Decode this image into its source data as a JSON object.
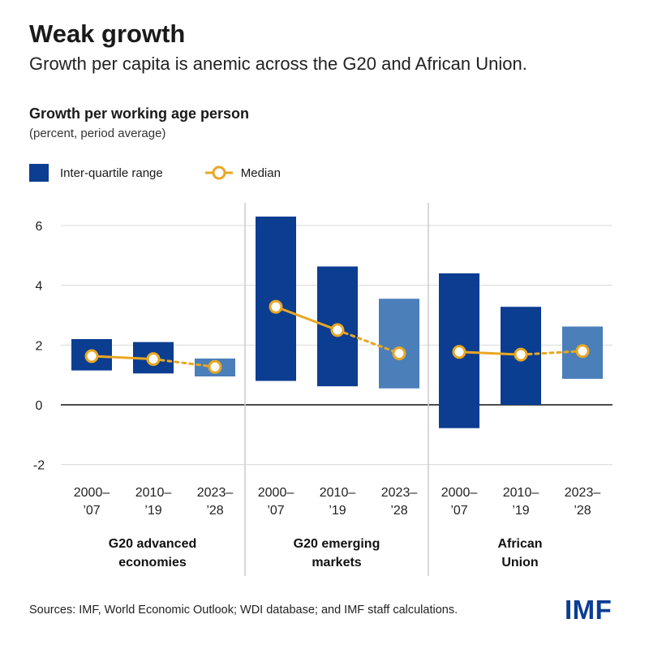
{
  "header": {
    "title": "Weak growth",
    "subtitle": "Growth per capita is anemic across the G20 and African Union."
  },
  "chart_header": {
    "title": "Growth per working age person",
    "subtitle": "(percent, period average)"
  },
  "legend": {
    "range_label": "Inter-quartile range",
    "median_label": "Median"
  },
  "footer": {
    "source": "Sources: IMF, World Economic Outlook; WDI database; and IMF staff calculations.",
    "logo": "IMF"
  },
  "colors": {
    "bar_dark": "#0b3d91",
    "bar_light": "#4a7fba",
    "median_line": "#e8a723"
  },
  "chart_data": {
    "type": "bar",
    "title": "Growth per working age person",
    "subtitle": "(percent, period average)",
    "ylim": [
      -2,
      6
    ],
    "yticks": [
      -2,
      0,
      2,
      4,
      6
    ],
    "grid": true,
    "legend_position": "top-left",
    "periods": [
      [
        "2000–",
        "’07"
      ],
      [
        "2010–",
        "’19"
      ],
      [
        "2023–",
        "’28"
      ]
    ],
    "groups": [
      {
        "name": [
          "G20 advanced",
          "economies"
        ],
        "bars": [
          {
            "low": 1.15,
            "high": 2.2,
            "median": 1.63,
            "projection": false
          },
          {
            "low": 1.05,
            "high": 2.1,
            "median": 1.53,
            "projection": false
          },
          {
            "low": 0.95,
            "high": 1.55,
            "median": 1.27,
            "projection": true
          }
        ]
      },
      {
        "name": [
          "G20 emerging",
          "markets"
        ],
        "bars": [
          {
            "low": 0.8,
            "high": 6.3,
            "median": 3.28,
            "projection": false
          },
          {
            "low": 0.62,
            "high": 4.63,
            "median": 2.5,
            "projection": false
          },
          {
            "low": 0.55,
            "high": 3.55,
            "median": 1.72,
            "projection": true
          }
        ]
      },
      {
        "name": [
          "African",
          "Union"
        ],
        "bars": [
          {
            "low": -0.78,
            "high": 4.4,
            "median": 1.77,
            "projection": false
          },
          {
            "low": 0.0,
            "high": 3.28,
            "median": 1.68,
            "projection": false
          },
          {
            "low": 0.87,
            "high": 2.62,
            "median": 1.8,
            "projection": true
          }
        ]
      }
    ]
  }
}
